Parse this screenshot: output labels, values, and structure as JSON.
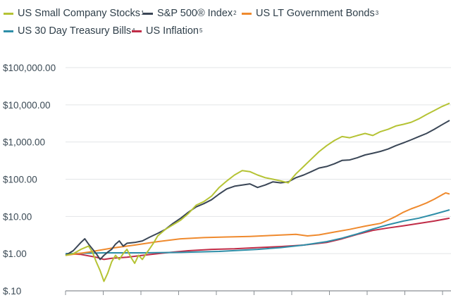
{
  "chart_data": {
    "type": "line",
    "title": "",
    "xlabel": "",
    "ylabel": "",
    "y_scale": "log",
    "ylim": [
      0.1,
      100000
    ],
    "y_ticks": [
      {
        "value": 100000,
        "label": "$100,000.00"
      },
      {
        "value": 10000,
        "label": "$10,000.00"
      },
      {
        "value": 1000,
        "label": "$1,000.00"
      },
      {
        "value": 100,
        "label": "$100.00"
      },
      {
        "value": 10,
        "label": "$10.00"
      },
      {
        "value": 1,
        "label": "$1.00"
      },
      {
        "value": 0.1,
        "label": "$.10"
      }
    ],
    "x_range": [
      0,
      100
    ],
    "x_tick_count": 11,
    "grid": "horizontal",
    "legend_position": "top",
    "series": [
      {
        "name": "US Small Company Stocks",
        "note": "1",
        "color": "#b5c334",
        "points": [
          [
            0,
            0.9
          ],
          [
            2,
            1.0
          ],
          [
            4,
            1.3
          ],
          [
            6,
            1.6
          ],
          [
            7,
            1.1
          ],
          [
            8,
            0.6
          ],
          [
            9,
            0.35
          ],
          [
            10,
            0.18
          ],
          [
            11,
            0.3
          ],
          [
            12,
            0.6
          ],
          [
            13,
            0.9
          ],
          [
            14,
            0.7
          ],
          [
            15,
            1.0
          ],
          [
            16,
            1.3
          ],
          [
            17,
            0.8
          ],
          [
            18,
            0.55
          ],
          [
            19,
            0.9
          ],
          [
            20,
            0.7
          ],
          [
            21,
            1.0
          ],
          [
            22,
            1.4
          ],
          [
            23,
            2.0
          ],
          [
            24,
            3.0
          ],
          [
            26,
            4.5
          ],
          [
            28,
            6.0
          ],
          [
            30,
            8.0
          ],
          [
            32,
            12
          ],
          [
            34,
            20
          ],
          [
            36,
            25
          ],
          [
            38,
            35
          ],
          [
            40,
            60
          ],
          [
            42,
            90
          ],
          [
            44,
            130
          ],
          [
            46,
            170
          ],
          [
            48,
            160
          ],
          [
            50,
            130
          ],
          [
            52,
            110
          ],
          [
            54,
            100
          ],
          [
            56,
            90
          ],
          [
            58,
            80
          ],
          [
            60,
            140
          ],
          [
            62,
            220
          ],
          [
            64,
            350
          ],
          [
            66,
            550
          ],
          [
            68,
            800
          ],
          [
            70,
            1100
          ],
          [
            72,
            1400
          ],
          [
            74,
            1300
          ],
          [
            76,
            1500
          ],
          [
            78,
            1700
          ],
          [
            80,
            1500
          ],
          [
            82,
            1900
          ],
          [
            84,
            2200
          ],
          [
            86,
            2700
          ],
          [
            88,
            3000
          ],
          [
            90,
            3400
          ],
          [
            92,
            4200
          ],
          [
            94,
            5500
          ],
          [
            96,
            7000
          ],
          [
            98,
            9000
          ],
          [
            100,
            11000
          ]
        ]
      },
      {
        "name": "S&P 500® Index",
        "note": "2",
        "color": "#3a4656",
        "points": [
          [
            0,
            0.9
          ],
          [
            2,
            1.2
          ],
          [
            4,
            2.0
          ],
          [
            5,
            2.5
          ],
          [
            6,
            1.8
          ],
          [
            8,
            1.0
          ],
          [
            9,
            0.7
          ],
          [
            10,
            0.9
          ],
          [
            11,
            1.1
          ],
          [
            12,
            1.3
          ],
          [
            13,
            1.8
          ],
          [
            14,
            2.2
          ],
          [
            15,
            1.6
          ],
          [
            16,
            1.9
          ],
          [
            18,
            2.0
          ],
          [
            20,
            2.2
          ],
          [
            22,
            2.8
          ],
          [
            24,
            3.5
          ],
          [
            26,
            4.5
          ],
          [
            28,
            6.5
          ],
          [
            30,
            9.0
          ],
          [
            32,
            13
          ],
          [
            34,
            18
          ],
          [
            36,
            22
          ],
          [
            38,
            28
          ],
          [
            40,
            40
          ],
          [
            42,
            55
          ],
          [
            44,
            65
          ],
          [
            46,
            70
          ],
          [
            48,
            75
          ],
          [
            50,
            60
          ],
          [
            52,
            70
          ],
          [
            54,
            85
          ],
          [
            56,
            80
          ],
          [
            58,
            85
          ],
          [
            60,
            110
          ],
          [
            62,
            130
          ],
          [
            64,
            160
          ],
          [
            66,
            200
          ],
          [
            68,
            220
          ],
          [
            70,
            260
          ],
          [
            72,
            320
          ],
          [
            74,
            330
          ],
          [
            76,
            380
          ],
          [
            78,
            450
          ],
          [
            80,
            500
          ],
          [
            82,
            560
          ],
          [
            84,
            650
          ],
          [
            86,
            800
          ],
          [
            88,
            950
          ],
          [
            90,
            1150
          ],
          [
            92,
            1400
          ],
          [
            94,
            1700
          ],
          [
            96,
            2200
          ],
          [
            98,
            2900
          ],
          [
            100,
            3800
          ]
        ]
      },
      {
        "name": "US LT Government Bonds",
        "note": "3",
        "color": "#ef8a2e",
        "points": [
          [
            0,
            0.9
          ],
          [
            6,
            1.1
          ],
          [
            12,
            1.4
          ],
          [
            18,
            1.7
          ],
          [
            24,
            2.1
          ],
          [
            30,
            2.5
          ],
          [
            36,
            2.7
          ],
          [
            42,
            2.8
          ],
          [
            48,
            2.9
          ],
          [
            54,
            3.1
          ],
          [
            60,
            3.3
          ],
          [
            63,
            3.0
          ],
          [
            66,
            3.2
          ],
          [
            70,
            3.8
          ],
          [
            74,
            4.5
          ],
          [
            78,
            5.5
          ],
          [
            80,
            6.0
          ],
          [
            82,
            6.5
          ],
          [
            84,
            8.0
          ],
          [
            86,
            10
          ],
          [
            88,
            13
          ],
          [
            90,
            16
          ],
          [
            92,
            19
          ],
          [
            94,
            23
          ],
          [
            96,
            29
          ],
          [
            98,
            38
          ],
          [
            99,
            43
          ],
          [
            100,
            40
          ]
        ]
      },
      {
        "name": "US 30 Day Treasury Bills",
        "note": "4",
        "color": "#2e8ea8",
        "points": [
          [
            0,
            1.0
          ],
          [
            10,
            1.05
          ],
          [
            20,
            1.05
          ],
          [
            30,
            1.08
          ],
          [
            40,
            1.15
          ],
          [
            50,
            1.3
          ],
          [
            56,
            1.45
          ],
          [
            62,
            1.7
          ],
          [
            68,
            2.1
          ],
          [
            72,
            2.6
          ],
          [
            76,
            3.4
          ],
          [
            80,
            4.6
          ],
          [
            84,
            6.0
          ],
          [
            88,
            7.5
          ],
          [
            92,
            9.0
          ],
          [
            96,
            11.5
          ],
          [
            100,
            15
          ]
        ]
      },
      {
        "name": "US Inflation",
        "note": "5",
        "color": "#c02c47",
        "points": [
          [
            0,
            1.0
          ],
          [
            4,
            0.95
          ],
          [
            8,
            0.8
          ],
          [
            10,
            0.7
          ],
          [
            12,
            0.75
          ],
          [
            16,
            0.8
          ],
          [
            20,
            0.9
          ],
          [
            26,
            1.05
          ],
          [
            32,
            1.2
          ],
          [
            38,
            1.3
          ],
          [
            44,
            1.35
          ],
          [
            50,
            1.45
          ],
          [
            56,
            1.55
          ],
          [
            62,
            1.7
          ],
          [
            68,
            2.0
          ],
          [
            72,
            2.5
          ],
          [
            76,
            3.3
          ],
          [
            80,
            4.2
          ],
          [
            84,
            4.9
          ],
          [
            88,
            5.6
          ],
          [
            92,
            6.5
          ],
          [
            96,
            7.5
          ],
          [
            100,
            9.0
          ]
        ]
      }
    ]
  }
}
